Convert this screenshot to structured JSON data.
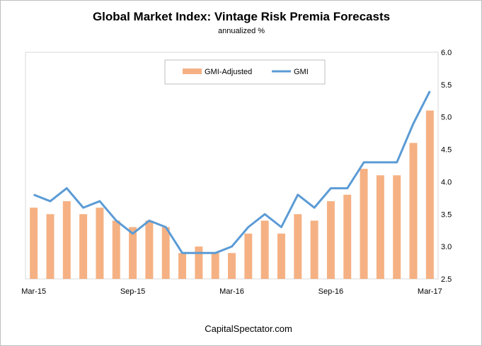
{
  "chart_data": {
    "type": "bar",
    "title": "Global Market Index: Vintage Risk Premia Forecasts",
    "subtitle": "annualized %",
    "x": [
      "Mar-15",
      "Apr-15",
      "May-15",
      "Jun-15",
      "Jul-15",
      "Aug-15",
      "Sep-15",
      "Oct-15",
      "Nov-15",
      "Dec-15",
      "Jan-16",
      "Feb-16",
      "Mar-16",
      "Apr-16",
      "May-16",
      "Jun-16",
      "Jul-16",
      "Aug-16",
      "Sep-16",
      "Oct-16",
      "Nov-16",
      "Dec-16",
      "Jan-17",
      "Feb-17",
      "Mar-17"
    ],
    "x_tick_labels": [
      "Mar-15",
      "Sep-15",
      "Mar-16",
      "Sep-16",
      "Mar-17"
    ],
    "y_ticks": [
      "6.0",
      "5.5",
      "5.0",
      "4.5",
      "4.0",
      "3.5",
      "3.0",
      "2.5"
    ],
    "ylim": [
      2.5,
      6.0
    ],
    "y_axis_side": "right",
    "grid": false,
    "legend_placement": "top-center",
    "series": [
      {
        "name": "GMI-Adjusted",
        "type": "bar",
        "color": "#f5b183",
        "values": [
          3.6,
          3.5,
          3.7,
          3.5,
          3.6,
          3.4,
          3.3,
          3.4,
          3.3,
          2.9,
          3.0,
          2.9,
          2.9,
          3.2,
          3.4,
          3.2,
          3.5,
          3.4,
          3.7,
          3.8,
          4.2,
          4.1,
          4.1,
          4.6,
          5.1
        ]
      },
      {
        "name": "GMI",
        "type": "line",
        "color": "#5b9bd5",
        "values": [
          3.8,
          3.7,
          3.9,
          3.6,
          3.7,
          3.4,
          3.2,
          3.4,
          3.3,
          2.9,
          2.9,
          2.9,
          3.0,
          3.3,
          3.5,
          3.3,
          3.8,
          3.6,
          3.9,
          3.9,
          4.3,
          4.3,
          4.3,
          4.9,
          5.4
        ]
      }
    ],
    "source_text": "CapitalSpectator.com"
  }
}
